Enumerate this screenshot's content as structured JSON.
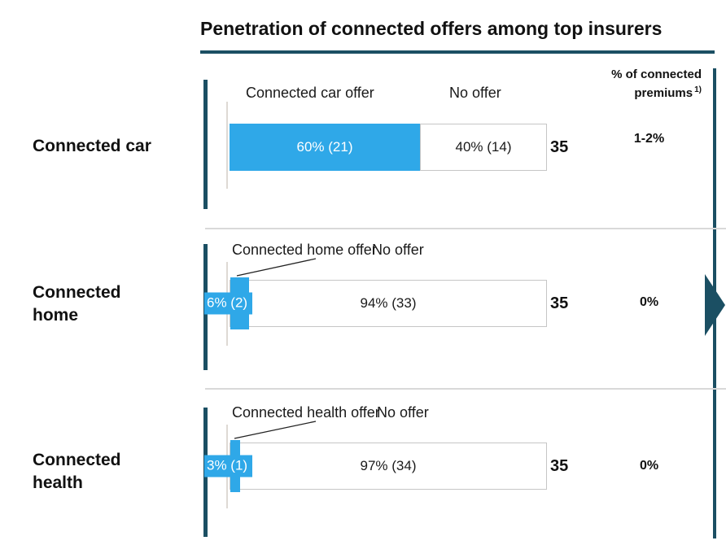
{
  "title": "Penetration of connected offers among top insurers",
  "premiums_header": {
    "line1": "% of connected",
    "line2": "premiums",
    "sup": "1)"
  },
  "colors": {
    "accent_teal": "#1b4f63",
    "bar_blue": "#2fa8e8",
    "bar_border": "#c6c6c6",
    "separator": "#d9d9d9",
    "axis_gray": "#ded9d4",
    "text": "#1a1a1a"
  },
  "chart_data": {
    "type": "bar",
    "orientation": "horizontal",
    "stacked": true,
    "title": "Penetration of connected offers among top insurers",
    "categories": [
      "Connected car",
      "Connected home",
      "Connected health"
    ],
    "series": [
      {
        "name": "Connected offer",
        "values_pct": [
          60,
          6,
          3
        ],
        "counts": [
          21,
          2,
          1
        ]
      },
      {
        "name": "No offer",
        "values_pct": [
          40,
          94,
          97
        ],
        "counts": [
          14,
          33,
          34
        ]
      }
    ],
    "totals": [
      35,
      35,
      35
    ],
    "premiums_column_header": "% of connected premiums 1)",
    "legend_position": "above each bar",
    "grid": false,
    "rows": [
      {
        "label": "Connected car",
        "offer_legend": "Connected car offer",
        "no_offer_legend": "No offer",
        "offer_pct": 60,
        "offer_count": 21,
        "offer_label": "60% (21)",
        "no_offer_pct": 40,
        "no_offer_count": 14,
        "no_offer_label": "40% (14)",
        "total": 35,
        "connected_premiums": "1-2%"
      },
      {
        "label": "Connected\nhome",
        "offer_legend": "Connected home offer",
        "no_offer_legend": "No offer",
        "offer_pct": 6,
        "offer_count": 2,
        "offer_label": "6% (2)",
        "no_offer_pct": 94,
        "no_offer_count": 33,
        "no_offer_label": "94% (33)",
        "total": 35,
        "connected_premiums": "0%"
      },
      {
        "label": "Connected\nhealth",
        "offer_legend": "Connected health offer",
        "no_offer_legend": "No offer",
        "offer_pct": 3,
        "offer_count": 1,
        "offer_label": "3% (1)",
        "no_offer_pct": 97,
        "no_offer_count": 34,
        "no_offer_label": "97% (34)",
        "total": 35,
        "connected_premiums": "0%"
      }
    ]
  }
}
